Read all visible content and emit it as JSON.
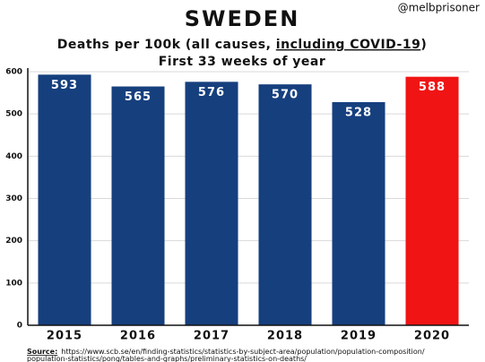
{
  "chart_data": {
    "type": "bar",
    "handle": "@melbprisoner",
    "title": "SWEDEN",
    "subtitle": [
      "Deaths per 100k (all causes, ",
      "including COVID-19",
      ")"
    ],
    "subtitle_underline": [
      false,
      true,
      false
    ],
    "subtitle_line2": "First 33 weeks of year",
    "categories": [
      "2015",
      "2016",
      "2017",
      "2018",
      "2019",
      "2020"
    ],
    "values": [
      593,
      565,
      576,
      570,
      528,
      588
    ],
    "colors": [
      "#163f7e",
      "#163f7e",
      "#163f7e",
      "#163f7e",
      "#163f7e",
      "#f01414"
    ],
    "ylim": [
      0,
      600
    ],
    "yticks": [
      0,
      100,
      200,
      300,
      400,
      500,
      600
    ],
    "grid": true,
    "source_label": "Source:",
    "source": [
      "https://www.scb.se/en/finding-statistics/statistics-by-subject-area/population/population-composition/",
      "population-statistics/pong/tables-and-graphs/preliminary-statistics-on-deaths/"
    ]
  }
}
